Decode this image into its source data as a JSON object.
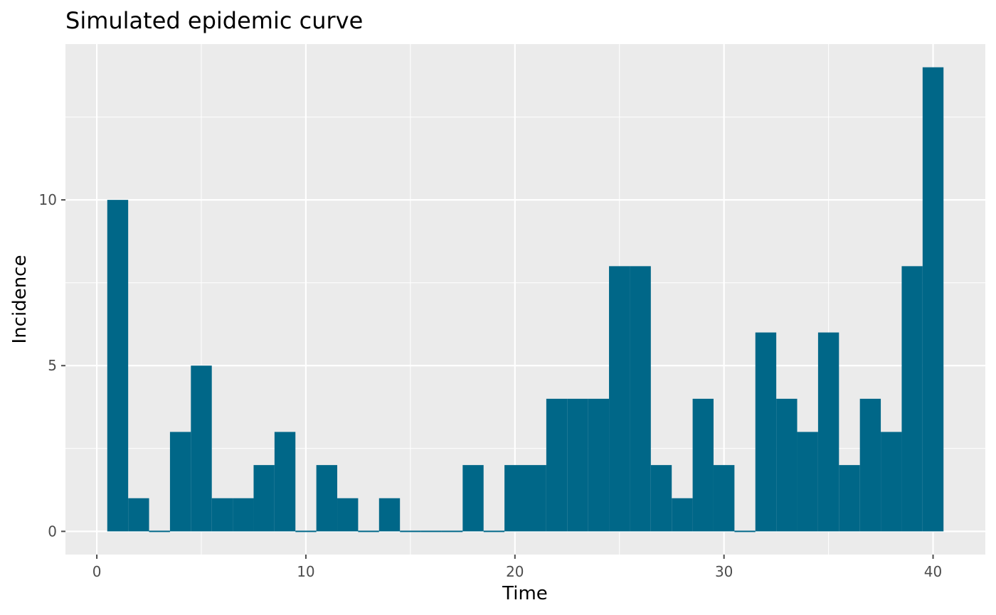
{
  "chart_data": {
    "type": "bar",
    "title": "Simulated epidemic curve",
    "xlabel": "Time",
    "ylabel": "Incidence",
    "x": [
      1,
      2,
      3,
      4,
      5,
      6,
      7,
      8,
      9,
      10,
      11,
      12,
      13,
      14,
      15,
      16,
      17,
      18,
      19,
      20,
      21,
      22,
      23,
      24,
      25,
      26,
      27,
      28,
      29,
      30,
      31,
      32,
      33,
      34,
      35,
      36,
      37,
      38,
      39,
      40
    ],
    "values": [
      10,
      1,
      0,
      3,
      5,
      1,
      1,
      2,
      3,
      0,
      2,
      1,
      0,
      1,
      0,
      0,
      0,
      2,
      0,
      2,
      2,
      4,
      4,
      4,
      8,
      8,
      2,
      1,
      4,
      2,
      0,
      6,
      4,
      3,
      6,
      2,
      4,
      3,
      8,
      14
    ],
    "xlim": [
      -1.5,
      42.5
    ],
    "ylim": [
      -0.7,
      14.7
    ],
    "x_ticks": [
      0,
      10,
      20,
      30,
      40
    ],
    "y_ticks": [
      0,
      5,
      10
    ],
    "x_minor_ticks": [
      5,
      15,
      25,
      35
    ],
    "y_minor_ticks": [
      2.5,
      7.5,
      12.5
    ],
    "grid": true,
    "legend": "none",
    "colors": {
      "bar": "#006788",
      "panel": "#EBEBEB",
      "grid": "#FFFFFF",
      "tick": "#4D4D4D"
    }
  }
}
